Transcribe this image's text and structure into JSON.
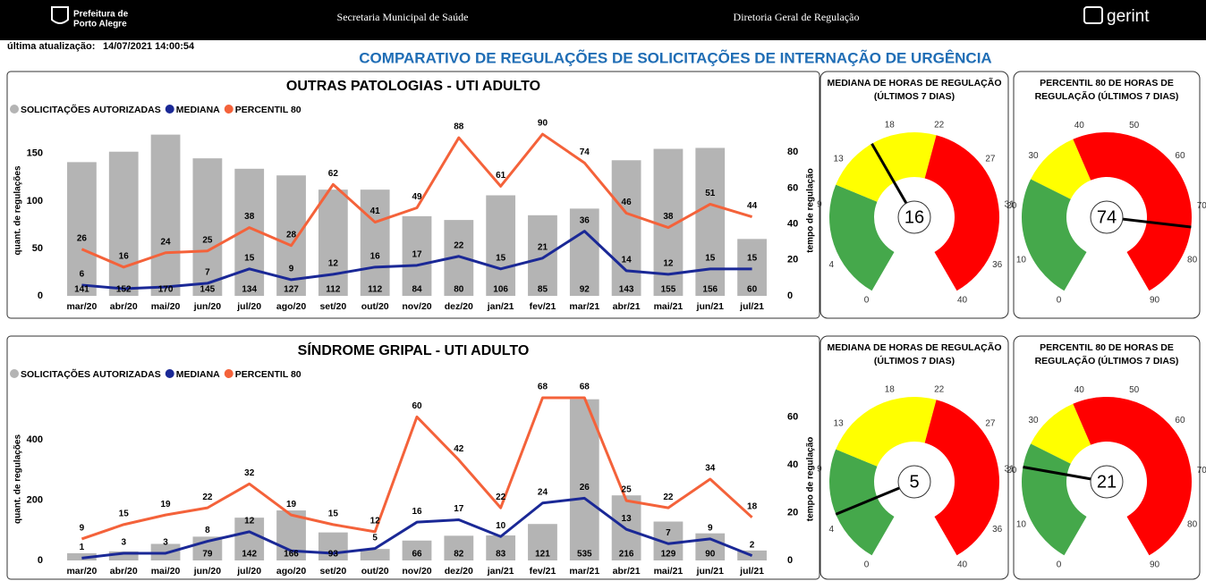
{
  "header": {
    "logo_line1": "Prefeitura de",
    "logo_line2": "Porto Alegre",
    "center_left": "Secretaria Municipal de Saúde",
    "center_right": "Diretoria Geral de Regulação",
    "brand": "gerint"
  },
  "update_label": "última atualização:",
  "update_time": "14/07/2021 14:00:54",
  "title": "COMPARATIVO DE REGULAÇÕES DE SOLICITAÇÕES DE INTERNAÇÃO DE URGÊNCIA",
  "chart_data": [
    {
      "type": "combo",
      "title": "OUTRAS PATOLOGIAS - UTI ADULTO",
      "categories": [
        "mar/20",
        "abr/20",
        "mai/20",
        "jun/20",
        "jul/20",
        "ago/20",
        "set/20",
        "out/20",
        "nov/20",
        "dez/20",
        "jan/21",
        "fev/21",
        "mar/21",
        "abr/21",
        "mai/21",
        "jun/21",
        "jul/21"
      ],
      "ylabel": "quant. de regulações",
      "y2label": "tempo de regulação",
      "ylim": [
        0,
        180
      ],
      "yticks": [
        0,
        50,
        100,
        150
      ],
      "y2lim": [
        0,
        95
      ],
      "y2ticks": [
        0,
        20,
        40,
        60,
        80
      ],
      "series": [
        {
          "name": "SOLICITAÇÕES AUTORIZADAS",
          "type": "bar",
          "color": "#b4b4b4",
          "values": [
            141,
            152,
            170,
            145,
            134,
            127,
            112,
            112,
            84,
            80,
            106,
            85,
            92,
            143,
            155,
            156,
            60
          ]
        },
        {
          "name": "MEDIANA",
          "type": "line",
          "axis": "y2",
          "color": "#1a2896",
          "values": [
            6,
            4,
            5,
            7,
            15,
            9,
            12,
            16,
            17,
            22,
            15,
            21,
            36,
            14,
            12,
            15,
            15
          ],
          "value_labels": [
            "6",
            null,
            null,
            "7",
            "15",
            "9",
            "12",
            "16",
            "17",
            "22",
            "15",
            "21",
            "36",
            "14",
            "12",
            "15",
            "15"
          ]
        },
        {
          "name": "PERCENTIL 80",
          "type": "line",
          "axis": "y2",
          "color": "#f4623a",
          "values": [
            26,
            16,
            24,
            25,
            38,
            28,
            62,
            41,
            49,
            88,
            61,
            90,
            74,
            46,
            38,
            51,
            44
          ]
        }
      ]
    },
    {
      "type": "gauge",
      "title": [
        "MEDIANA DE HORAS DE REGULAÇÃO",
        "(ÚLTIMOS 7 DIAS)"
      ],
      "value": 16,
      "ylim": [
        0,
        40
      ],
      "yticks": [
        0,
        4,
        9,
        13,
        18,
        22,
        27,
        31,
        36,
        40
      ],
      "bands": [
        {
          "from": 0,
          "to": 11,
          "color": "#45a84b"
        },
        {
          "from": 11,
          "to": 22,
          "color": "#ffff00"
        },
        {
          "from": 22,
          "to": 40,
          "color": "#ff0000"
        }
      ]
    },
    {
      "type": "gauge",
      "title": [
        "PERCENTIL 80 DE HORAS DE",
        "REGULAÇÃO (ÚLTIMOS 7 DIAS)"
      ],
      "value": 74,
      "ylim": [
        0,
        90
      ],
      "yticks": [
        0,
        10,
        20,
        30,
        40,
        50,
        60,
        70,
        80,
        90
      ],
      "bands": [
        {
          "from": 0,
          "to": 26,
          "color": "#45a84b"
        },
        {
          "from": 26,
          "to": 38,
          "color": "#ffff00"
        },
        {
          "from": 38,
          "to": 90,
          "color": "#ff0000"
        }
      ]
    },
    {
      "type": "combo",
      "title": "SÍNDROME GRIPAL - UTI ADULTO",
      "categories": [
        "mar/20",
        "abr/20",
        "mai/20",
        "jun/20",
        "jul/20",
        "ago/20",
        "set/20",
        "out/20",
        "nov/20",
        "dez/20",
        "jan/21",
        "fev/21",
        "mar/21",
        "abr/21",
        "mai/21",
        "jun/21",
        "jul/21"
      ],
      "ylabel": "quant. de regulações",
      "y2label": "tempo de regulação",
      "ylim": [
        0,
        540
      ],
      "yticks": [
        0,
        200,
        400
      ],
      "y2lim": [
        0,
        68
      ],
      "y2ticks": [
        0,
        20,
        40,
        60
      ],
      "series": [
        {
          "name": "SOLICITAÇÕES AUTORIZADAS",
          "type": "bar",
          "color": "#b4b4b4",
          "values": [
            24,
            30,
            55,
            79,
            142,
            166,
            93,
            38,
            66,
            82,
            83,
            121,
            535,
            216,
            129,
            90,
            33
          ],
          "value_labels": [
            null,
            null,
            null,
            "79",
            "142",
            "166",
            "93",
            null,
            "66",
            "82",
            "83",
            "121",
            "535",
            "216",
            "129",
            "90",
            null
          ]
        },
        {
          "name": "MEDIANA",
          "type": "line",
          "axis": "y2",
          "color": "#1a2896",
          "values": [
            1,
            3,
            3,
            8,
            12,
            4,
            3,
            5,
            16,
            17,
            10,
            24,
            26,
            13,
            7,
            9,
            2
          ],
          "value_labels": [
            "1",
            "3",
            "3",
            "8",
            "12",
            null,
            null,
            "5",
            "16",
            "17",
            "10",
            "24",
            "26",
            "13",
            "7",
            "9",
            "2"
          ]
        },
        {
          "name": "PERCENTIL 80",
          "type": "line",
          "axis": "y2",
          "color": "#f4623a",
          "values": [
            9,
            15,
            19,
            22,
            32,
            19,
            15,
            12,
            60,
            42,
            22,
            68,
            68,
            25,
            22,
            34,
            18
          ]
        }
      ]
    },
    {
      "type": "gauge",
      "title": [
        "MEDIANA DE HORAS DE REGULAÇÃO",
        "(ÚLTIMOS 7 DIAS)"
      ],
      "value": 5,
      "ylim": [
        0,
        40
      ],
      "yticks": [
        0,
        4,
        9,
        13,
        18,
        22,
        27,
        31,
        36,
        40
      ],
      "bands": [
        {
          "from": 0,
          "to": 11,
          "color": "#45a84b"
        },
        {
          "from": 11,
          "to": 22,
          "color": "#ffff00"
        },
        {
          "from": 22,
          "to": 40,
          "color": "#ff0000"
        }
      ]
    },
    {
      "type": "gauge",
      "title": [
        "PERCENTIL 80 DE HORAS DE",
        "REGULAÇÃO (ÚLTIMOS 7 DIAS)"
      ],
      "value": 21,
      "ylim": [
        0,
        90
      ],
      "yticks": [
        0,
        10,
        20,
        30,
        40,
        50,
        60,
        70,
        80,
        90
      ],
      "bands": [
        {
          "from": 0,
          "to": 26,
          "color": "#45a84b"
        },
        {
          "from": 26,
          "to": 38,
          "color": "#ffff00"
        },
        {
          "from": 38,
          "to": 90,
          "color": "#ff0000"
        }
      ]
    }
  ]
}
